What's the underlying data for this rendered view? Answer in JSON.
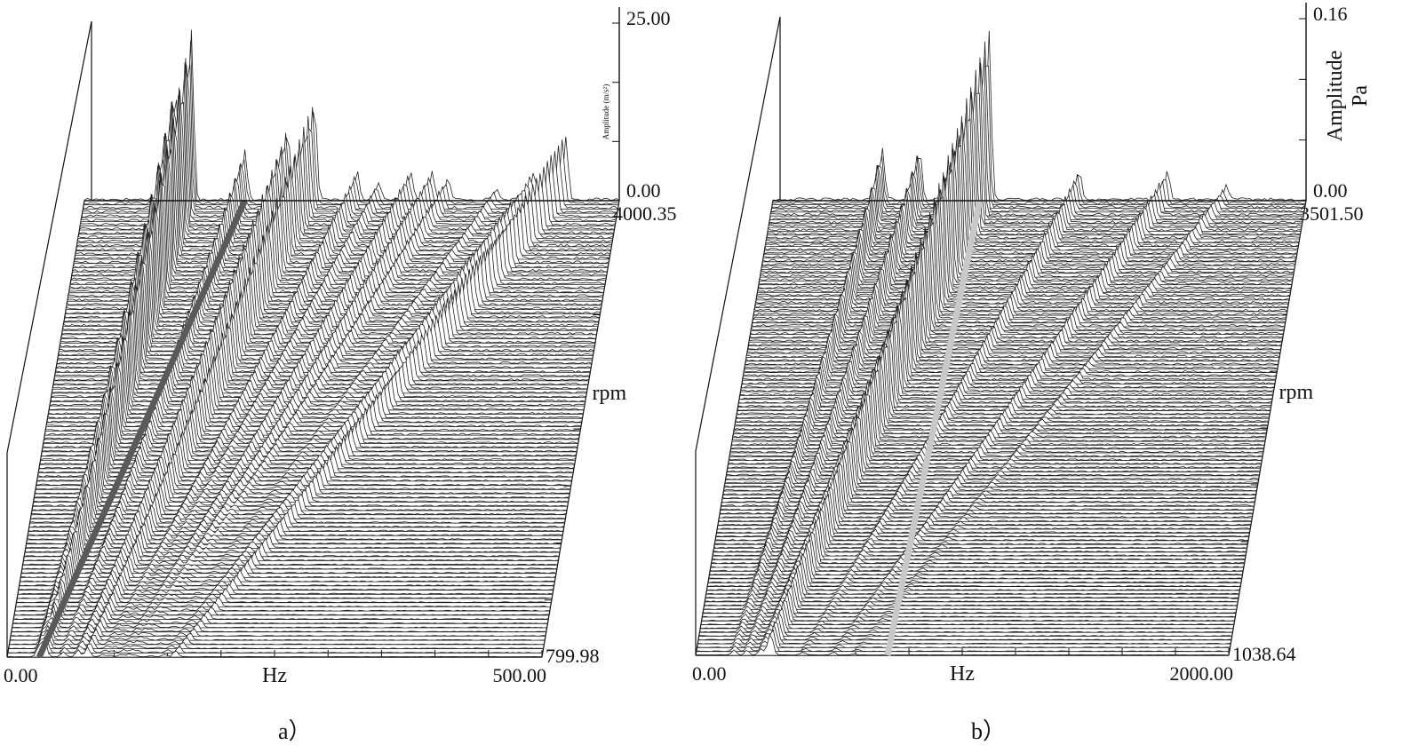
{
  "figure": {
    "caption_a": "a）",
    "caption_b": "b）"
  },
  "chart_data": [
    {
      "type": "waterfall",
      "panel": "a",
      "x_axis": {
        "label": "Hz",
        "min": 0.0,
        "max": 500.0,
        "min_label": "0.00",
        "max_label": "500.00"
      },
      "speed_axis": {
        "label": "rpm",
        "min": 799.98,
        "max": 4000.35,
        "min_label": "799.98",
        "max_label": "4000.35"
      },
      "amplitude_axis": {
        "label": "Amplitude (m/s²)",
        "min": 0.0,
        "max": 25.0,
        "min_label": "0.00",
        "max_label": "25.00"
      },
      "order_line_color": "#5a5a5a",
      "order_line_hz_at_min": 30,
      "order_line_hz_at_max": 150,
      "peaks_at_max_speed": [
        {
          "hz": 100,
          "amp": 24
        },
        {
          "hz": 85,
          "amp": 16
        },
        {
          "hz": 150,
          "amp": 7
        },
        {
          "hz": 190,
          "amp": 10
        },
        {
          "hz": 215,
          "amp": 14
        },
        {
          "hz": 255,
          "amp": 4
        },
        {
          "hz": 275,
          "amp": 2.5
        },
        {
          "hz": 305,
          "amp": 4
        },
        {
          "hz": 325,
          "amp": 4
        },
        {
          "hz": 340,
          "amp": 3
        },
        {
          "hz": 385,
          "amp": 1.5
        },
        {
          "hz": 420,
          "amp": 4
        },
        {
          "hz": 450,
          "amp": 9
        }
      ]
    },
    {
      "type": "waterfall",
      "panel": "b",
      "x_axis": {
        "label": "Hz",
        "min": 0.0,
        "max": 2000.0,
        "min_label": "0.00",
        "max_label": "2000.00"
      },
      "speed_axis": {
        "label": "rpm",
        "min": 1038.64,
        "max": 3501.5,
        "min_label": "1038.64",
        "max_label": "3501.50"
      },
      "amplitude_axis": {
        "label": "Amplitude",
        "unit": "Pa",
        "min": 0.0,
        "max": 0.16,
        "min_label": "0.00",
        "max_label": "0.16"
      },
      "order_line_color": "#c8c8c8",
      "order_line_hz_at_min": 720,
      "order_line_hz_at_max": 775,
      "peaks_at_max_speed": [
        {
          "hz": 410,
          "amp": 0.045
        },
        {
          "hz": 550,
          "amp": 0.045
        },
        {
          "hz": 700,
          "amp": 0.055
        },
        {
          "hz": 810,
          "amp": 0.15
        },
        {
          "hz": 780,
          "amp": 0.075
        },
        {
          "hz": 1150,
          "amp": 0.025
        },
        {
          "hz": 1480,
          "amp": 0.025
        },
        {
          "hz": 1700,
          "amp": 0.012
        }
      ]
    }
  ]
}
